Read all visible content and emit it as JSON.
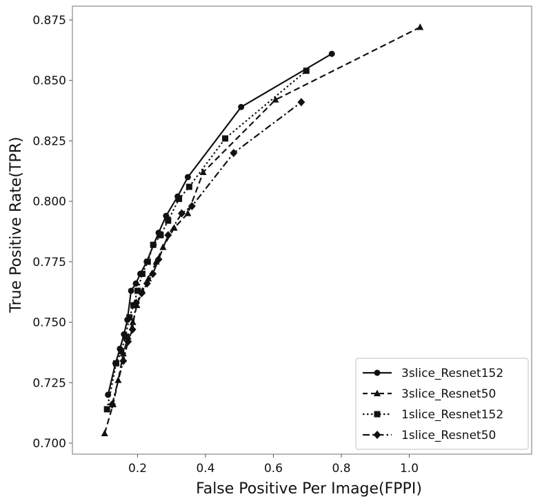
{
  "chart_data": {
    "type": "line",
    "title": "",
    "xlabel": "False Positive Per Image(FPPI)",
    "ylabel": "True Positive Rate(TPR)",
    "xlim": [
      0.07,
      1.08
    ],
    "ylim": [
      0.6985,
      0.8805
    ],
    "xticks": [
      0.2,
      0.4,
      0.6,
      0.8,
      1.0
    ],
    "xtick_labels": [
      "0.2",
      "0.4",
      "0.6",
      "0.8",
      "1.0"
    ],
    "yticks": [
      0.7,
      0.725,
      0.75,
      0.775,
      0.8,
      0.825,
      0.85,
      0.875
    ],
    "ytick_labels": [
      "0.700",
      "0.725",
      "0.750",
      "0.775",
      "0.800",
      "0.825",
      "0.850",
      "0.875"
    ],
    "grid": false,
    "legend_position": "lower right",
    "series": [
      {
        "name": "3slice_Resnet152",
        "linestyle": "solid",
        "marker": "circle",
        "x": [
          0.113,
          0.135,
          0.148,
          0.16,
          0.17,
          0.181,
          0.195,
          0.208,
          0.227,
          0.247,
          0.262,
          0.284,
          0.318,
          0.348,
          0.505,
          0.772
        ],
        "y": [
          0.72,
          0.733,
          0.739,
          0.745,
          0.751,
          0.763,
          0.766,
          0.77,
          0.775,
          0.782,
          0.787,
          0.794,
          0.802,
          0.81,
          0.839,
          0.861
        ]
      },
      {
        "name": "3slice_Resnet50",
        "linestyle": "dashed",
        "marker": "triangle",
        "x": [
          0.103,
          0.128,
          0.143,
          0.158,
          0.172,
          0.186,
          0.198,
          0.214,
          0.232,
          0.255,
          0.275,
          0.308,
          0.348,
          0.393,
          0.606,
          1.032
        ],
        "y": [
          0.704,
          0.716,
          0.726,
          0.737,
          0.744,
          0.75,
          0.757,
          0.763,
          0.768,
          0.775,
          0.781,
          0.789,
          0.795,
          0.812,
          0.842,
          0.872
        ]
      },
      {
        "name": "1slice_Resnet152",
        "linestyle": "dotted",
        "marker": "square",
        "x": [
          0.11,
          0.137,
          0.152,
          0.164,
          0.176,
          0.188,
          0.2,
          0.214,
          0.23,
          0.246,
          0.268,
          0.29,
          0.322,
          0.352,
          0.458,
          0.697
        ],
        "y": [
          0.714,
          0.733,
          0.738,
          0.744,
          0.752,
          0.757,
          0.763,
          0.77,
          0.775,
          0.782,
          0.786,
          0.792,
          0.801,
          0.806,
          0.826,
          0.854
        ]
      },
      {
        "name": "1slice_Resnet50",
        "linestyle": "dashdot",
        "marker": "diamond",
        "x": [
          0.125,
          0.158,
          0.172,
          0.185,
          0.196,
          0.212,
          0.228,
          0.245,
          0.262,
          0.29,
          0.33,
          0.36,
          0.483,
          0.682
        ],
        "y": [
          0.716,
          0.734,
          0.742,
          0.747,
          0.758,
          0.762,
          0.766,
          0.77,
          0.776,
          0.786,
          0.795,
          0.798,
          0.82,
          0.841
        ]
      }
    ]
  },
  "colors": {
    "line": "#111111",
    "frame": "#a0a0a0",
    "legend_border": "#cccccc",
    "background": "#ffffff"
  }
}
